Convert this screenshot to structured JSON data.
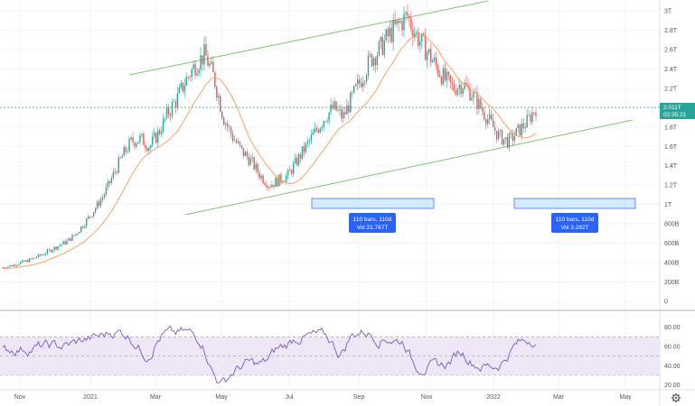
{
  "chart_data": [
    {
      "type": "candlestick",
      "title": "",
      "y_ticks": [
        "3T",
        "2.8T",
        "2.6T",
        "2.4T",
        "2.2T",
        "2T",
        "1.8T",
        "1.6T",
        "1.4T",
        "1.2T",
        "1T",
        "800B",
        "600B",
        "400B",
        "200B",
        "0"
      ],
      "x_ticks": [
        "Nov",
        "2021",
        "Mar",
        "May",
        "Jul",
        "Sep",
        "Nov",
        "2022",
        "Mar",
        "May"
      ],
      "ylim": [
        0,
        3.0
      ],
      "y_unit": "T",
      "current_price_label": "2.011T",
      "countdown_label": "02:35:21",
      "close_path_T": [
        0.35,
        0.37,
        0.4,
        0.43,
        0.47,
        0.52,
        0.57,
        0.62,
        0.7,
        0.82,
        0.95,
        1.1,
        1.3,
        1.5,
        1.65,
        1.68,
        1.6,
        1.75,
        1.95,
        2.1,
        2.3,
        2.45,
        2.55,
        2.3,
        1.9,
        1.7,
        1.55,
        1.45,
        1.3,
        1.2,
        1.25,
        1.3,
        1.45,
        1.6,
        1.75,
        1.9,
        2.0,
        1.9,
        2.1,
        2.3,
        2.5,
        2.6,
        2.75,
        2.85,
        2.95,
        2.75,
        2.6,
        2.45,
        2.3,
        2.2,
        2.25,
        2.15,
        2.0,
        1.85,
        1.7,
        1.65,
        1.75,
        1.85,
        2.0
      ],
      "channel_lines": [
        {
          "from": [
            "Nov 2020",
            2.3
          ],
          "to": [
            "Nov 2021",
            3.05
          ]
        },
        {
          "from": [
            "Dec 2020",
            0.9
          ],
          "to": [
            "Apr 2022",
            1.85
          ]
        }
      ],
      "range_measures": [
        {
          "line1": "110 bars, 110d",
          "line2": "Vol 21.767T"
        },
        {
          "line1": "110 bars, 110d",
          "line2": "Vol 3.282T"
        }
      ]
    },
    {
      "type": "line",
      "name": "RSI",
      "y_ticks": [
        "80.00",
        "60.00",
        "40.00",
        "20.00"
      ],
      "ylim": [
        15,
        90
      ],
      "band": [
        30,
        70
      ],
      "current_value": 62
    }
  ],
  "colors": {
    "up": "#26a69a",
    "down": "#ef5350",
    "ma": "#f5a462",
    "channel": "#7cc76b",
    "rsi": "#7e57c2",
    "rsi_band": "#ede7f6",
    "measure": "#2962ff",
    "price_badge": "#26a69a"
  },
  "settings_icon": "gear-icon"
}
